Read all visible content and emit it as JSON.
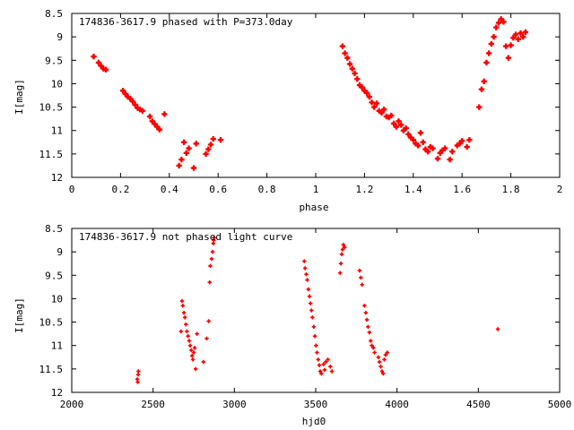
{
  "chart_data": [
    {
      "type": "scatter",
      "title": "174836-3617.9 phased with P=373.0day",
      "xlabel": "phase",
      "ylabel": "I[mag]",
      "xlim": [
        0,
        2
      ],
      "ylim": [
        12,
        8.5
      ],
      "y_inverted": true,
      "x_ticks": [
        "0",
        "0.2",
        "0.4",
        "0.6",
        "0.8",
        "1",
        "1.2",
        "1.4",
        "1.6",
        "1.8",
        "2"
      ],
      "y_ticks": [
        "8.5",
        "9",
        "9.5",
        "10",
        "10.5",
        "11",
        "11.5",
        "12"
      ],
      "marker_color": "#ff0000",
      "marker_size": 1.0,
      "series": [
        {
          "x": [
            0.09,
            0.11,
            0.12,
            0.13,
            0.14,
            0.21,
            0.22,
            0.23,
            0.24,
            0.25,
            0.26,
            0.27,
            0.28,
            0.29,
            0.32,
            0.33,
            0.34,
            0.35,
            0.36,
            0.38,
            0.44,
            0.45,
            0.46,
            0.47,
            0.48,
            0.5,
            0.51,
            0.55,
            0.56,
            0.57,
            0.58,
            0.61,
            1.11,
            1.12,
            1.13,
            1.14,
            1.15,
            1.16,
            1.17,
            1.18,
            1.19,
            1.2,
            1.21,
            1.22,
            1.23,
            1.24,
            1.25,
            1.26,
            1.27,
            1.28,
            1.29,
            1.3,
            1.31,
            1.32,
            1.33,
            1.34,
            1.35,
            1.36,
            1.37,
            1.38,
            1.39,
            1.4,
            1.41,
            1.42,
            1.43,
            1.44,
            1.45,
            1.46,
            1.47,
            1.48,
            1.5,
            1.51,
            1.52,
            1.53,
            1.55,
            1.56,
            1.58,
            1.59,
            1.6,
            1.62,
            1.63,
            1.67,
            1.68,
            1.69,
            1.7,
            1.71,
            1.72,
            1.73,
            1.74,
            1.75,
            1.76,
            1.77,
            1.78,
            1.79,
            1.8,
            1.81,
            1.82,
            1.83,
            1.84,
            1.85,
            1.86
          ],
          "y": [
            9.42,
            9.55,
            9.62,
            9.68,
            9.7,
            10.15,
            10.22,
            10.28,
            10.32,
            10.38,
            10.45,
            10.52,
            10.55,
            10.58,
            10.7,
            10.8,
            10.86,
            10.92,
            10.98,
            10.65,
            11.75,
            11.62,
            11.25,
            11.48,
            11.38,
            11.8,
            11.28,
            11.5,
            11.4,
            11.3,
            11.18,
            11.2,
            9.2,
            9.35,
            9.45,
            9.58,
            9.68,
            9.78,
            9.9,
            10.03,
            10.08,
            10.15,
            10.2,
            10.28,
            10.4,
            10.5,
            10.42,
            10.58,
            10.62,
            10.55,
            10.7,
            10.72,
            10.68,
            10.85,
            10.92,
            10.8,
            10.88,
            11.0,
            10.95,
            11.08,
            11.15,
            11.2,
            11.28,
            11.32,
            11.05,
            11.25,
            11.4,
            11.45,
            11.35,
            11.38,
            11.6,
            11.48,
            11.42,
            11.38,
            11.62,
            11.45,
            11.32,
            11.28,
            11.22,
            11.35,
            11.2,
            10.5,
            10.12,
            9.95,
            9.55,
            9.35,
            9.15,
            9.0,
            8.8,
            8.7,
            8.62,
            8.68,
            9.2,
            9.45,
            9.18,
            9.02,
            8.95,
            9.05,
            8.92,
            9.0,
            8.9
          ]
        }
      ]
    },
    {
      "type": "scatter",
      "title": "174836-3617.9 not phased light curve",
      "xlabel": "hjd0",
      "ylabel": "I[mag]",
      "xlim": [
        2000,
        5000
      ],
      "ylim": [
        12,
        8.5
      ],
      "y_inverted": true,
      "x_ticks": [
        "2000",
        "2500",
        "3000",
        "3500",
        "4000",
        "4500",
        "5000"
      ],
      "y_ticks": [
        "8.5",
        "9",
        "9.5",
        "10",
        "10.5",
        "11",
        "11.5",
        "12"
      ],
      "marker_color": "#ff0000",
      "marker_size": 0.7,
      "series": [
        {
          "x": [
            2403,
            2406,
            2408,
            2410,
            2672,
            2678,
            2683,
            2690,
            2696,
            2702,
            2708,
            2715,
            2722,
            2728,
            2735,
            2740,
            2745,
            2750,
            2756,
            2762,
            2770,
            2810,
            2830,
            2842,
            2848,
            2852,
            2860,
            2866,
            2870,
            2873,
            2876,
            3430,
            3435,
            3442,
            3448,
            3455,
            3462,
            3468,
            3474,
            3480,
            3488,
            3495,
            3502,
            3508,
            3515,
            3522,
            3528,
            3535,
            3548,
            3555,
            3562,
            3575,
            3590,
            3600,
            3650,
            3655,
            3660,
            3665,
            3670,
            3678,
            3770,
            3778,
            3785,
            3800,
            3808,
            3815,
            3822,
            3830,
            3838,
            3845,
            3855,
            3862,
            3885,
            3892,
            3900,
            3908,
            3915,
            3922,
            3930,
            3940,
            4620
          ],
          "y": [
            11.72,
            11.78,
            11.62,
            11.55,
            10.7,
            10.05,
            10.15,
            10.3,
            10.4,
            10.55,
            10.7,
            10.8,
            10.9,
            11.0,
            11.1,
            11.22,
            11.3,
            11.15,
            11.05,
            11.5,
            10.75,
            11.35,
            10.85,
            10.48,
            9.65,
            9.3,
            9.15,
            9.0,
            8.82,
            8.75,
            8.7,
            9.2,
            9.35,
            9.48,
            9.6,
            9.8,
            9.95,
            10.1,
            10.25,
            10.4,
            10.6,
            10.8,
            11.0,
            11.15,
            11.3,
            11.42,
            11.55,
            11.6,
            11.4,
            11.52,
            11.35,
            11.3,
            11.45,
            11.55,
            9.45,
            9.25,
            9.05,
            8.95,
            8.85,
            8.9,
            9.4,
            9.55,
            9.7,
            10.15,
            10.3,
            10.45,
            10.6,
            10.72,
            10.9,
            11.0,
            11.05,
            11.15,
            11.25,
            11.35,
            11.45,
            11.55,
            11.6,
            11.3,
            11.2,
            11.15,
            10.65
          ]
        }
      ]
    }
  ]
}
